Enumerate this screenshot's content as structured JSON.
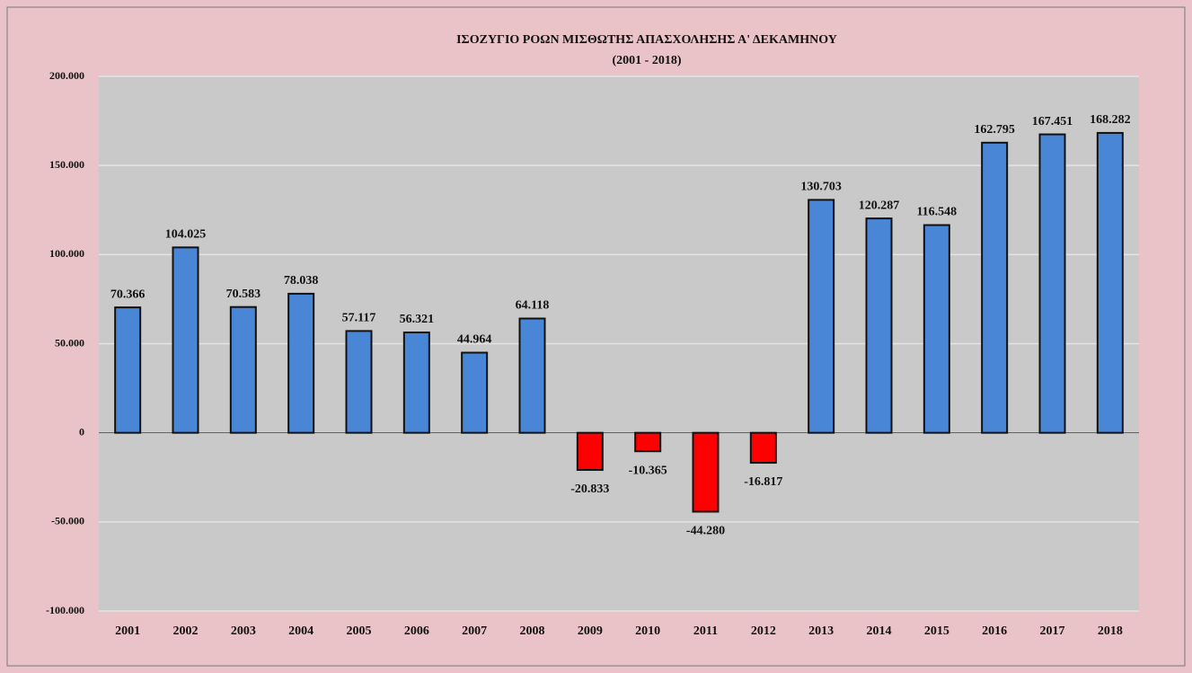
{
  "chart_data": {
    "type": "bar",
    "title": "ΙΣΟΖΥΓΙΟ ΡΟΩΝ ΜΙΣΘΩΤΗΣ ΑΠΑΣΧΟΛΗΣΗΣ Α' ΔΕΚΑΜΗΝΟΥ",
    "subtitle": "(2001 - 2018)",
    "categories": [
      "2001",
      "2002",
      "2003",
      "2004",
      "2005",
      "2006",
      "2007",
      "2008",
      "2009",
      "2010",
      "2011",
      "2012",
      "2013",
      "2014",
      "2015",
      "2016",
      "2017",
      "2018"
    ],
    "values": [
      70366,
      104025,
      70583,
      78038,
      57117,
      56321,
      44964,
      64118,
      -20833,
      -10365,
      -44280,
      -16817,
      130703,
      120287,
      116548,
      162795,
      167451,
      168282
    ],
    "value_labels": [
      "70.366",
      "104.025",
      "70.583",
      "78.038",
      "57.117",
      "56.321",
      "44.964",
      "64.118",
      "-20.833",
      "-10.365",
      "-44.280",
      "-16.817",
      "130.703",
      "120.287",
      "116.548",
      "162.795",
      "167.451",
      "168.282"
    ],
    "color": "#4a86d6",
    "negative_color": "#ff0000",
    "ylim": [
      -100000,
      200000
    ],
    "yticks": [
      {
        "value": -100000,
        "label": "-100.000"
      },
      {
        "value": -50000,
        "label": "-50.000"
      },
      0,
      {
        "value": 50000,
        "label": "50.000"
      },
      {
        "value": 100000,
        "label": "100.000"
      },
      {
        "value": 150000,
        "label": "150.000"
      },
      {
        "value": 200000,
        "label": "200.000"
      }
    ],
    "grid": true
  }
}
